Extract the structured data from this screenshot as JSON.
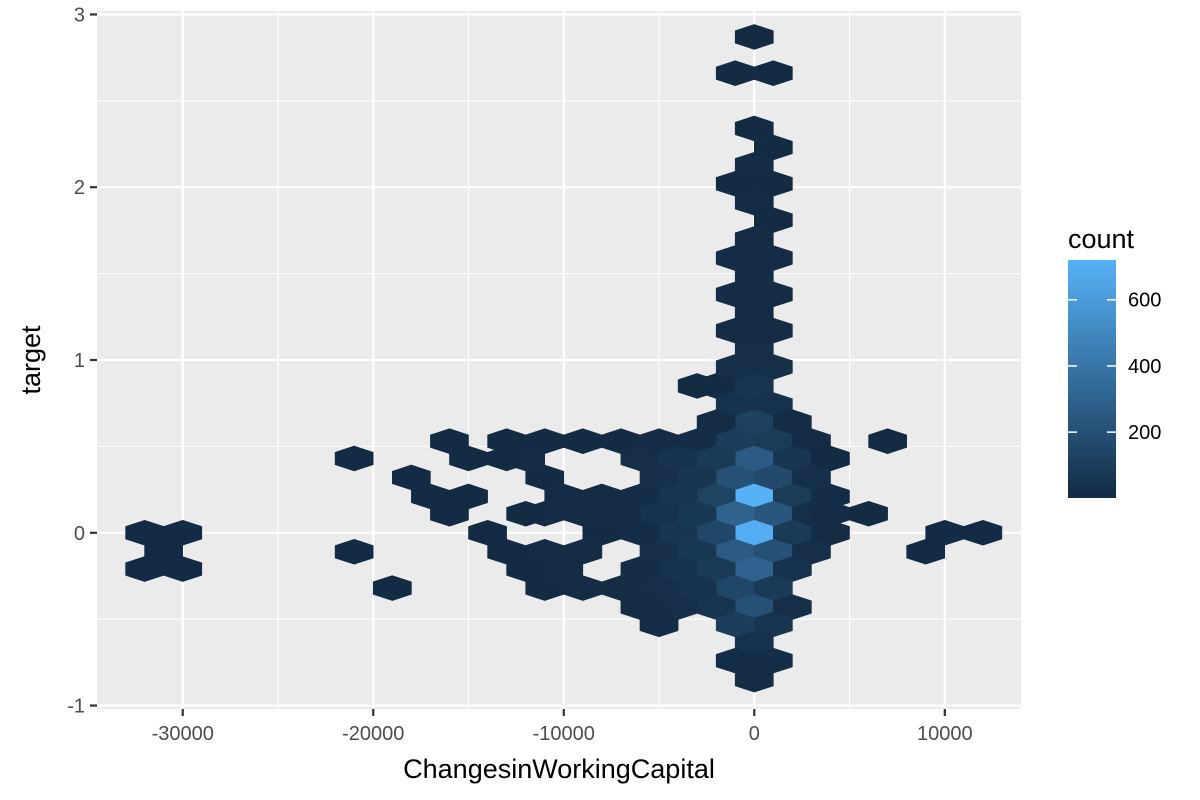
{
  "chart_data": {
    "type": "hexbin",
    "xlabel": "ChangesinWorkingCapital",
    "ylabel": "target",
    "xlim": [
      -34500,
      14000
    ],
    "ylim": [
      -1.02,
      3.02
    ],
    "x_ticks": [
      -30000,
      -20000,
      -10000,
      0,
      10000
    ],
    "x_tick_labels": [
      "-30000",
      "-20000",
      "-10000",
      "0",
      "10000"
    ],
    "y_ticks": [
      -1,
      0,
      1,
      2,
      3
    ],
    "y_tick_labels": [
      "-1",
      "0",
      "1",
      "2",
      "3"
    ],
    "grid": true,
    "legend": {
      "title": "count",
      "position": "right",
      "ticks": [
        200,
        400,
        600
      ],
      "tick_labels": [
        "200",
        "400",
        "600"
      ],
      "range": [
        1,
        720
      ],
      "color_low": "#132B43",
      "color_high": "#56B1F7"
    },
    "hexbin": {
      "bin_width_x": 2000,
      "row_height_y": 0.106,
      "y_origin": 0.0,
      "cells": [
        [
          0,
          2.87,
          5
        ],
        [
          -1,
          2.66,
          4
        ],
        [
          1,
          2.66,
          4
        ],
        [
          0,
          2.34,
          5
        ],
        [
          1,
          2.23,
          6
        ],
        [
          0,
          2.13,
          8
        ],
        [
          -1,
          2.02,
          6
        ],
        [
          1,
          2.02,
          6
        ],
        [
          0,
          1.91,
          8
        ],
        [
          1,
          1.81,
          6
        ],
        [
          0,
          1.7,
          10
        ],
        [
          -1,
          1.59,
          8
        ],
        [
          1,
          1.59,
          8
        ],
        [
          0,
          1.49,
          12
        ],
        [
          -1,
          1.38,
          8
        ],
        [
          1,
          1.38,
          8
        ],
        [
          0,
          1.28,
          14
        ],
        [
          -1,
          1.17,
          10
        ],
        [
          1,
          1.17,
          10
        ],
        [
          0,
          1.06,
          25
        ],
        [
          -1,
          0.96,
          20
        ],
        [
          1,
          0.96,
          20
        ],
        [
          -3,
          0.85,
          5
        ],
        [
          -2,
          0.85,
          5
        ],
        [
          0,
          0.85,
          50
        ],
        [
          -1,
          0.74,
          40
        ],
        [
          1,
          0.74,
          40
        ],
        [
          0,
          0.64,
          120
        ],
        [
          -2,
          0.64,
          10
        ],
        [
          2,
          0.64,
          10
        ],
        [
          -1,
          0.53,
          100
        ],
        [
          1,
          0.53,
          90
        ],
        [
          -3,
          0.53,
          15
        ],
        [
          -5,
          0.53,
          8
        ],
        [
          -7,
          0.53,
          5
        ],
        [
          -9,
          0.53,
          5
        ],
        [
          -11,
          0.53,
          5
        ],
        [
          -13,
          0.53,
          5
        ],
        [
          3,
          0.53,
          8
        ],
        [
          7,
          0.53,
          4
        ],
        [
          -16,
          0.53,
          4
        ],
        [
          0,
          0.43,
          260
        ],
        [
          -2,
          0.43,
          80
        ],
        [
          2,
          0.43,
          60
        ],
        [
          -4,
          0.43,
          40
        ],
        [
          -6,
          0.43,
          20
        ],
        [
          -12,
          0.43,
          8
        ],
        [
          4,
          0.43,
          6
        ],
        [
          -15,
          0.43,
          4
        ],
        [
          -13,
          0.43,
          4
        ],
        [
          -21,
          0.43,
          3
        ],
        [
          -1,
          0.32,
          200
        ],
        [
          1,
          0.32,
          170
        ],
        [
          -3,
          0.32,
          60
        ],
        [
          3,
          0.32,
          20
        ],
        [
          -5,
          0.32,
          30
        ],
        [
          -11,
          0.32,
          6
        ],
        [
          -18,
          0.32,
          3
        ],
        [
          0,
          0.21,
          720
        ],
        [
          -2,
          0.21,
          130
        ],
        [
          2,
          0.21,
          90
        ],
        [
          -4,
          0.21,
          50
        ],
        [
          4,
          0.21,
          14
        ],
        [
          -6,
          0.21,
          15
        ],
        [
          -8,
          0.21,
          10
        ],
        [
          -10,
          0.21,
          8
        ],
        [
          -17,
          0.21,
          4
        ],
        [
          -15,
          0.21,
          3
        ],
        [
          -1,
          0.11,
          300
        ],
        [
          1,
          0.11,
          230
        ],
        [
          -3,
          0.11,
          70
        ],
        [
          3,
          0.11,
          25
        ],
        [
          -5,
          0.11,
          40
        ],
        [
          -7,
          0.11,
          10
        ],
        [
          -9,
          0.11,
          10
        ],
        [
          -11,
          0.11,
          8
        ],
        [
          -12,
          0.11,
          6
        ],
        [
          4,
          0.11,
          8
        ],
        [
          6,
          0.11,
          4
        ],
        [
          -16,
          0.11,
          3
        ],
        [
          0,
          0.0,
          700
        ],
        [
          -2,
          0.0,
          150
        ],
        [
          2,
          0.0,
          80
        ],
        [
          -4,
          0.0,
          60
        ],
        [
          -6,
          0.0,
          15
        ],
        [
          -8,
          0.0,
          6
        ],
        [
          4,
          0.0,
          10
        ],
        [
          -14,
          0.0,
          3
        ],
        [
          -30,
          0.0,
          3
        ],
        [
          -32,
          0.0,
          3
        ],
        [
          10,
          0.0,
          3
        ],
        [
          12,
          0.0,
          3
        ],
        [
          -1,
          -0.11,
          260
        ],
        [
          1,
          -0.11,
          200
        ],
        [
          -3,
          -0.11,
          70
        ],
        [
          3,
          -0.11,
          20
        ],
        [
          -5,
          -0.11,
          30
        ],
        [
          -9,
          -0.11,
          10
        ],
        [
          -11,
          -0.11,
          8
        ],
        [
          -13,
          -0.11,
          3
        ],
        [
          -21,
          -0.11,
          3
        ],
        [
          -31,
          -0.11,
          3
        ],
        [
          9,
          -0.11,
          3
        ],
        [
          0,
          -0.21,
          300
        ],
        [
          -2,
          -0.21,
          80
        ],
        [
          2,
          -0.21,
          40
        ],
        [
          -4,
          -0.21,
          40
        ],
        [
          -6,
          -0.21,
          15
        ],
        [
          -10,
          -0.21,
          8
        ],
        [
          -12,
          -0.21,
          6
        ],
        [
          -30,
          -0.21,
          3
        ],
        [
          -32,
          -0.21,
          3
        ],
        [
          -1,
          -0.32,
          150
        ],
        [
          1,
          -0.32,
          80
        ],
        [
          -3,
          -0.32,
          40
        ],
        [
          -5,
          -0.32,
          25
        ],
        [
          -7,
          -0.32,
          10
        ],
        [
          -9,
          -0.32,
          8
        ],
        [
          -11,
          -0.32,
          5
        ],
        [
          -19,
          -0.32,
          3
        ],
        [
          0,
          -0.43,
          200
        ],
        [
          -2,
          -0.43,
          50
        ],
        [
          2,
          -0.43,
          20
        ],
        [
          -4,
          -0.43,
          20
        ],
        [
          -6,
          -0.43,
          10
        ],
        [
          -1,
          -0.53,
          100
        ],
        [
          1,
          -0.53,
          50
        ],
        [
          -5,
          -0.53,
          8
        ],
        [
          0,
          -0.64,
          40
        ],
        [
          1,
          -0.74,
          15
        ],
        [
          -1,
          -0.74,
          12
        ],
        [
          0,
          -0.85,
          10
        ]
      ]
    }
  }
}
